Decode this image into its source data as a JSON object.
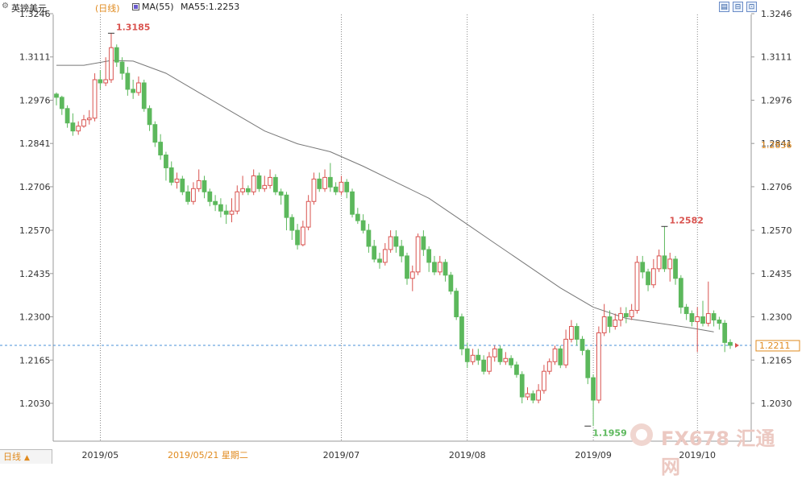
{
  "header": {
    "gear_icon": "gear-icon",
    "title": "英镑美元",
    "period": "(日线)",
    "ma_label": "MA(55)",
    "ma_value": "MA55:1.2253",
    "ma_color": "#6a5acd"
  },
  "window_buttons": [
    {
      "name": "chart-list-button",
      "glyph": "▤"
    },
    {
      "name": "chart-zoom-button",
      "glyph": "⊟"
    },
    {
      "name": "chart-expand-button",
      "glyph": "⊡"
    }
  ],
  "footer": {
    "period_tab": "日线",
    "arrow": "▲"
  },
  "watermark": {
    "text": "FX678 汇通网"
  },
  "colors": {
    "up": "#d9534f",
    "down": "#5cb85c",
    "ma_line": "#777777",
    "grid": "#555555",
    "dashed_line": "#4a90d9",
    "current_box": "#e08a1e"
  },
  "chart_data": {
    "type": "candlestick",
    "ylim": [
      1.195,
      1.3246
    ],
    "y_ticks": [
      "1.3246",
      "1.3111",
      "1.2976",
      "1.2841",
      "1.2706",
      "1.2570",
      "1.2435",
      "1.2300",
      "1.2165",
      "1.2030"
    ],
    "x_ticks": [
      {
        "label": "2019/05",
        "index": 8
      },
      {
        "label": "2019/07",
        "index": 52
      },
      {
        "label": "2019/08",
        "index": 75
      },
      {
        "label": "2019/09",
        "index": 98
      },
      {
        "label": "2019/10",
        "index": 117
      }
    ],
    "crosshair_date": "2019/05/21 星期二",
    "crosshair_index": 20,
    "annotations": [
      {
        "text": "1.3185",
        "index": 10,
        "value": 1.3185,
        "kind": "high"
      },
      {
        "text": "1.2582",
        "index": 111,
        "value": 1.2582,
        "kind": "high"
      },
      {
        "text": "1.1959",
        "index": 97,
        "value": 1.1959,
        "kind": "low"
      }
    ],
    "right_axis_marks": [
      {
        "text": "1.2836",
        "value": 1.2836
      },
      {
        "text": "1.2211",
        "value": 1.2211
      }
    ],
    "current_price": 1.2211,
    "ma_series": {
      "name": "MA55",
      "points": [
        [
          0,
          1.3085
        ],
        [
          5,
          1.3085
        ],
        [
          10,
          1.31
        ],
        [
          14,
          1.3098
        ],
        [
          20,
          1.306
        ],
        [
          26,
          1.3
        ],
        [
          32,
          1.294
        ],
        [
          38,
          1.288
        ],
        [
          44,
          1.284
        ],
        [
          50,
          1.2815
        ],
        [
          56,
          1.277
        ],
        [
          62,
          1.272
        ],
        [
          68,
          1.267
        ],
        [
          74,
          1.26
        ],
        [
          80,
          1.253
        ],
        [
          86,
          1.246
        ],
        [
          92,
          1.239
        ],
        [
          98,
          1.233
        ],
        [
          104,
          1.2295
        ],
        [
          110,
          1.228
        ],
        [
          116,
          1.2265
        ],
        [
          120,
          1.2253
        ]
      ]
    },
    "candles": [
      [
        1.2995,
        1.2985,
        1.3,
        1.296
      ],
      [
        1.2985,
        1.295,
        1.299,
        1.293
      ],
      [
        1.295,
        1.2905,
        1.296,
        1.289
      ],
      [
        1.2905,
        1.288,
        1.2935,
        1.2865
      ],
      [
        1.288,
        1.2895,
        1.291,
        1.2868
      ],
      [
        1.2895,
        1.2915,
        1.293,
        1.289
      ],
      [
        1.2915,
        1.292,
        1.2945,
        1.29
      ],
      [
        1.292,
        1.304,
        1.306,
        1.291
      ],
      [
        1.304,
        1.303,
        1.307,
        1.301
      ],
      [
        1.303,
        1.304,
        1.311,
        1.302
      ],
      [
        1.304,
        1.314,
        1.3185,
        1.303
      ],
      [
        1.314,
        1.3095,
        1.315,
        1.308
      ],
      [
        1.3095,
        1.306,
        1.311,
        1.304
      ],
      [
        1.306,
        1.301,
        1.308,
        1.299
      ],
      [
        1.301,
        1.3,
        1.304,
        1.298
      ],
      [
        1.3,
        1.303,
        1.305,
        1.299
      ],
      [
        1.303,
        1.295,
        1.304,
        1.294
      ],
      [
        1.295,
        1.29,
        1.296,
        1.288
      ],
      [
        1.29,
        1.2845,
        1.291,
        1.283
      ],
      [
        1.2845,
        1.2805,
        1.287,
        1.279
      ],
      [
        1.2805,
        1.2765,
        1.2815,
        1.2725
      ],
      [
        1.2765,
        1.272,
        1.2785,
        1.271
      ],
      [
        1.272,
        1.273,
        1.275,
        1.27
      ],
      [
        1.273,
        1.269,
        1.274,
        1.268
      ],
      [
        1.269,
        1.266,
        1.271,
        1.265
      ],
      [
        1.266,
        1.27,
        1.272,
        1.265
      ],
      [
        1.27,
        1.2725,
        1.276,
        1.269
      ],
      [
        1.2725,
        1.269,
        1.274,
        1.267
      ],
      [
        1.269,
        1.266,
        1.27,
        1.2645
      ],
      [
        1.266,
        1.265,
        1.268,
        1.263
      ],
      [
        1.265,
        1.263,
        1.267,
        1.261
      ],
      [
        1.263,
        1.262,
        1.265,
        1.259
      ],
      [
        1.262,
        1.263,
        1.267,
        1.2595
      ],
      [
        1.263,
        1.269,
        1.271,
        1.262
      ],
      [
        1.269,
        1.27,
        1.274,
        1.268
      ],
      [
        1.27,
        1.269,
        1.271,
        1.268
      ],
      [
        1.269,
        1.274,
        1.276,
        1.268
      ],
      [
        1.274,
        1.27,
        1.275,
        1.269
      ],
      [
        1.27,
        1.271,
        1.274,
        1.269
      ],
      [
        1.271,
        1.2735,
        1.276,
        1.27
      ],
      [
        1.2735,
        1.269,
        1.2745,
        1.268
      ],
      [
        1.269,
        1.268,
        1.27,
        1.265
      ],
      [
        1.268,
        1.261,
        1.269,
        1.257
      ],
      [
        1.261,
        1.257,
        1.262,
        1.254
      ],
      [
        1.257,
        1.2525,
        1.259,
        1.251
      ],
      [
        1.2525,
        1.258,
        1.26,
        1.252
      ],
      [
        1.258,
        1.266,
        1.268,
        1.257
      ],
      [
        1.266,
        1.273,
        1.275,
        1.265
      ],
      [
        1.273,
        1.27,
        1.275,
        1.269
      ],
      [
        1.27,
        1.2735,
        1.276,
        1.269
      ],
      [
        1.2735,
        1.2705,
        1.278,
        1.269
      ],
      [
        1.2705,
        1.269,
        1.272,
        1.268
      ],
      [
        1.269,
        1.272,
        1.274,
        1.268
      ],
      [
        1.272,
        1.269,
        1.273,
        1.267
      ],
      [
        1.269,
        1.262,
        1.27,
        1.261
      ],
      [
        1.262,
        1.26,
        1.264,
        1.259
      ],
      [
        1.26,
        1.257,
        1.262,
        1.256
      ],
      [
        1.257,
        1.252,
        1.259,
        1.25
      ],
      [
        1.252,
        1.248,
        1.254,
        1.247
      ],
      [
        1.248,
        1.247,
        1.25,
        1.245
      ],
      [
        1.247,
        1.251,
        1.253,
        1.246
      ],
      [
        1.251,
        1.255,
        1.257,
        1.25
      ],
      [
        1.255,
        1.252,
        1.257,
        1.25
      ],
      [
        1.252,
        1.249,
        1.254,
        1.247
      ],
      [
        1.249,
        1.242,
        1.25,
        1.24
      ],
      [
        1.242,
        1.244,
        1.246,
        1.238
      ],
      [
        1.244,
        1.255,
        1.256,
        1.243
      ],
      [
        1.255,
        1.251,
        1.257,
        1.249
      ],
      [
        1.251,
        1.247,
        1.252,
        1.244
      ],
      [
        1.247,
        1.244,
        1.249,
        1.243
      ],
      [
        1.244,
        1.247,
        1.249,
        1.243
      ],
      [
        1.247,
        1.243,
        1.248,
        1.241
      ],
      [
        1.243,
        1.238,
        1.244,
        1.237
      ],
      [
        1.238,
        1.23,
        1.239,
        1.229
      ],
      [
        1.23,
        1.22,
        1.231,
        1.218
      ],
      [
        1.22,
        1.216,
        1.222,
        1.214
      ],
      [
        1.216,
        1.218,
        1.22,
        1.215
      ],
      [
        1.218,
        1.2165,
        1.22,
        1.215
      ],
      [
        1.2165,
        1.213,
        1.218,
        1.212
      ],
      [
        1.213,
        1.2175,
        1.219,
        1.212
      ],
      [
        1.2175,
        1.22,
        1.221,
        1.216
      ],
      [
        1.22,
        1.216,
        1.221,
        1.215
      ],
      [
        1.216,
        1.217,
        1.219,
        1.215
      ],
      [
        1.217,
        1.215,
        1.218,
        1.214
      ],
      [
        1.215,
        1.212,
        1.216,
        1.211
      ],
      [
        1.212,
        1.205,
        1.213,
        1.203
      ],
      [
        1.205,
        1.206,
        1.208,
        1.204
      ],
      [
        1.206,
        1.204,
        1.207,
        1.203
      ],
      [
        1.204,
        1.207,
        1.209,
        1.203
      ],
      [
        1.207,
        1.213,
        1.215,
        1.206
      ],
      [
        1.213,
        1.216,
        1.217,
        1.212
      ],
      [
        1.216,
        1.22,
        1.221,
        1.215
      ],
      [
        1.22,
        1.215,
        1.221,
        1.214
      ],
      [
        1.215,
        1.223,
        1.226,
        1.214
      ],
      [
        1.223,
        1.227,
        1.229,
        1.222
      ],
      [
        1.227,
        1.223,
        1.228,
        1.221
      ],
      [
        1.223,
        1.2195,
        1.224,
        1.218
      ],
      [
        1.2195,
        1.211,
        1.22,
        1.209
      ],
      [
        1.211,
        1.204,
        1.212,
        1.1959
      ],
      [
        1.204,
        1.225,
        1.227,
        1.203
      ],
      [
        1.225,
        1.23,
        1.234,
        1.224
      ],
      [
        1.23,
        1.227,
        1.232,
        1.225
      ],
      [
        1.227,
        1.229,
        1.231,
        1.226
      ],
      [
        1.229,
        1.231,
        1.233,
        1.227
      ],
      [
        1.231,
        1.23,
        1.233,
        1.228
      ],
      [
        1.23,
        1.232,
        1.234,
        1.229
      ],
      [
        1.232,
        1.247,
        1.249,
        1.231
      ],
      [
        1.247,
        1.244,
        1.249,
        1.242
      ],
      [
        1.244,
        1.24,
        1.245,
        1.238
      ],
      [
        1.24,
        1.245,
        1.248,
        1.239
      ],
      [
        1.245,
        1.249,
        1.251,
        1.244
      ],
      [
        1.249,
        1.245,
        1.2582,
        1.244
      ],
      [
        1.245,
        1.248,
        1.25,
        1.241
      ],
      [
        1.248,
        1.242,
        1.249,
        1.24
      ],
      [
        1.242,
        1.233,
        1.243,
        1.231
      ],
      [
        1.233,
        1.231,
        1.234,
        1.229
      ],
      [
        1.231,
        1.2285,
        1.232,
        1.227
      ],
      [
        1.2285,
        1.23,
        1.233,
        1.219
      ],
      [
        1.23,
        1.228,
        1.235,
        1.227
      ],
      [
        1.228,
        1.231,
        1.241,
        1.227
      ],
      [
        1.231,
        1.229,
        1.232,
        1.227
      ],
      [
        1.229,
        1.228,
        1.23,
        1.226
      ],
      [
        1.228,
        1.222,
        1.229,
        1.219
      ],
      [
        1.222,
        1.2211,
        1.223,
        1.22
      ]
    ]
  }
}
